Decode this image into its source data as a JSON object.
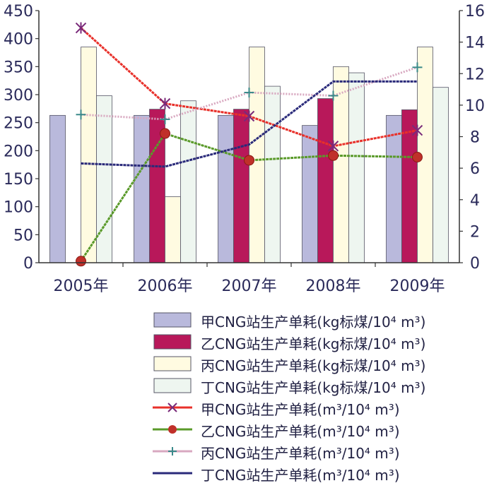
{
  "chart_data": {
    "type": "bar+line",
    "categories": [
      "2005年",
      "2006年",
      "2007年",
      "2008年",
      "2009年"
    ],
    "y_left": {
      "lim": [
        0,
        450
      ],
      "ticks": [
        0,
        50,
        100,
        150,
        200,
        250,
        300,
        350,
        400,
        450
      ]
    },
    "y_right": {
      "lim": [
        0,
        16
      ],
      "ticks": [
        0,
        2,
        4,
        6,
        8,
        10,
        12,
        14,
        16
      ]
    },
    "bar_series": [
      {
        "name": "甲CNG站生产单耗(kg标煤/10⁴ m³)",
        "color": "#b9b9dc",
        "values": [
          263,
          263,
          263,
          245,
          263
        ]
      },
      {
        "name": "乙CNG站生产单耗(kg标煤/10⁴ m³)",
        "color": "#b8185a",
        "values": [
          null,
          274,
          274,
          293,
          273
        ]
      },
      {
        "name": "丙CNG站生产单耗(kg标煤/10⁴ m³)",
        "color": "#fffbe1",
        "values": [
          385,
          118,
          385,
          350,
          385
        ]
      },
      {
        "name": "丁CNG站生产单耗(kg标煤/10⁴ m³)",
        "color": "#eef6f0",
        "values": [
          298,
          289,
          315,
          339,
          313
        ]
      }
    ],
    "line_series": [
      {
        "name": "甲CNG站生产单耗(m³/10⁴ m³)",
        "color": "#e8302a",
        "marker": "star",
        "values": [
          14.9,
          10.1,
          9.3,
          7.4,
          8.4
        ]
      },
      {
        "name": "乙CNG站生产单耗(m³/10⁴ m³)",
        "color": "#5a9a2a",
        "marker": "dot",
        "values": [
          0.1,
          8.2,
          6.5,
          6.8,
          6.7
        ]
      },
      {
        "name": "丙CNG站生产单耗(m³/10⁴ m³)",
        "color": "#d8a8c0",
        "marker": "plus",
        "values": [
          9.4,
          9.1,
          10.8,
          10.6,
          12.4
        ]
      },
      {
        "name": "丁CNG站生产单耗(m³/10⁴ m³)",
        "color": "#2a2a7a",
        "marker": "dash",
        "values": [
          6.3,
          6.1,
          7.5,
          11.5,
          11.5
        ]
      }
    ],
    "grid": false,
    "legend_position": "bottom"
  }
}
